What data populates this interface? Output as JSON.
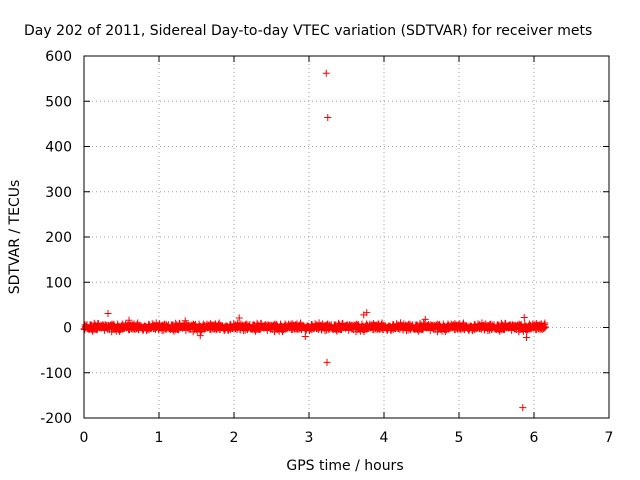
{
  "chart_data": {
    "type": "scatter",
    "title": "Day 202 of 2011, Sidereal Day-to-day VTEC variation (SDTVAR) for receiver mets",
    "xlabel": "GPS time / hours",
    "ylabel": "SDTVAR / TECUs",
    "xlim": [
      0,
      7
    ],
    "ylim": [
      -200,
      600
    ],
    "xticks": [
      0,
      1,
      2,
      3,
      4,
      5,
      6,
      7
    ],
    "yticks": [
      -200,
      -100,
      0,
      100,
      200,
      300,
      400,
      500,
      600
    ],
    "grid": true,
    "marker": "+",
    "series_color": "#ff0000",
    "dense_band": {
      "x_start": 0.0,
      "x_end": 6.15,
      "y_center": 0,
      "y_spread": 12,
      "point_count": 1400
    },
    "outliers": [
      {
        "x": 3.23,
        "y": 562
      },
      {
        "x": 3.25,
        "y": 464
      },
      {
        "x": 3.24,
        "y": -77
      },
      {
        "x": 5.85,
        "y": -177
      },
      {
        "x": 0.32,
        "y": 31
      },
      {
        "x": 3.77,
        "y": 33
      },
      {
        "x": 3.73,
        "y": 28
      },
      {
        "x": 5.87,
        "y": 22
      },
      {
        "x": 2.07,
        "y": 21
      },
      {
        "x": 1.55,
        "y": -18
      },
      {
        "x": 2.95,
        "y": -20
      },
      {
        "x": 4.55,
        "y": 18
      },
      {
        "x": 1.35,
        "y": 15
      },
      {
        "x": 0.6,
        "y": 16
      },
      {
        "x": 5.9,
        "y": -22
      }
    ]
  }
}
